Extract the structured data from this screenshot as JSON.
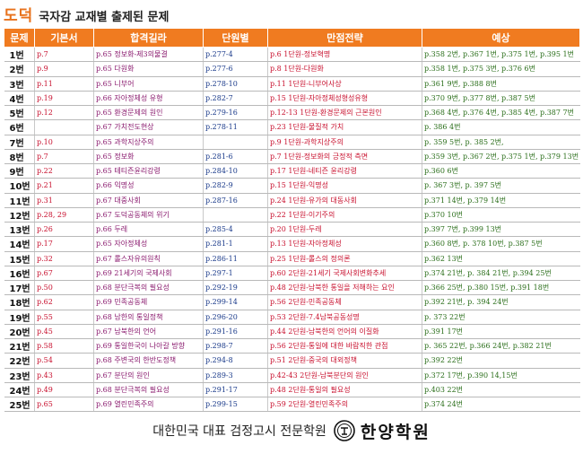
{
  "header": {
    "brand": "도덕",
    "subtitle": "국자감 교재별 출제된 문제"
  },
  "table": {
    "columns": [
      "문제",
      "기본서",
      "합격길라",
      "단원별",
      "만점전략",
      "예상"
    ],
    "rows": [
      {
        "num": "1번",
        "c1": "p.7",
        "c2": "p.65 정보화-제3의물결",
        "c3": "p.277-4",
        "c4": "p.6 1단원-정보혁명",
        "c5": "p.358 2번, p.367 1번, p.375 1번, p.395 1번"
      },
      {
        "num": "2번",
        "c1": "p.9",
        "c2": "p.65 다원화",
        "c3": "p.277-6",
        "c4": "p.8 1단원-다원화",
        "c5": "p.358 1번, p.375 3번, p.376 6번"
      },
      {
        "num": "3번",
        "c1": "p.11",
        "c2": "p.65 니부어",
        "c3": "p.278-10",
        "c4": "p.11 1단원-니부어사상",
        "c5": "p.361 9번, p.388 8번"
      },
      {
        "num": "4번",
        "c1": "p.19",
        "c2": "p.66 자아정체성 유형",
        "c3": "p.282-7",
        "c4": "p.15 1단원-자아정체성형성유형",
        "c5": "p.370 9번, p.377 8번, p.387 5번"
      },
      {
        "num": "5번",
        "c1": "p.12",
        "c2": "p.65 환경문제의 원인",
        "c3": "p.279-16",
        "c4": "p.12-13 1단원-환경문제의 근본원인",
        "c5": "p.368 4번, p.376 4번, p.385 4번, p.387 7번"
      },
      {
        "num": "6번",
        "c1": "",
        "c2": "p.67 가치전도현상",
        "c3": "p.278-11",
        "c4": "p.23 1단원-물질적 가치",
        "c5": "p. 386 4번"
      },
      {
        "num": "7번",
        "c1": "p.10",
        "c2": "p.65 과학지상주의",
        "c3": "",
        "c4": "p.9 1단원-과학지상주의",
        "c5": "p. 359 5번, p. 385 2번,"
      },
      {
        "num": "8번",
        "c1": "p.7",
        "c2": "p.65 정보화",
        "c3": "p.281-6",
        "c4": "p.7 1단원-정보화의 긍정적 측면",
        "c5": "p.359 3번, p.367 2번, p.375 1번, p.379 13번"
      },
      {
        "num": "9번",
        "c1": "p.22",
        "c2": "p.65 테티즌윤리강령",
        "c3": "p.284-10",
        "c4": "p.17 1단원-네티즌 윤리강령",
        "c5": "p.360 6번"
      },
      {
        "num": "10번",
        "c1": "p.21",
        "c2": "p.66 익명성",
        "c3": "p.282-9",
        "c4": "p.15 1단원-익명성",
        "c5": "p. 367 3번, p. 397 5번"
      },
      {
        "num": "11번",
        "c1": "p.31",
        "c2": "p.67 대중사회",
        "c3": "p.287-16",
        "c4": "p.24 1단원-유가의 대동사회",
        "c5": "p.371 14번, p.379 14번"
      },
      {
        "num": "12번",
        "c1": "p.28, 29",
        "c2": "p.67 도덕공동체의 위기",
        "c3": "",
        "c4": "p.22 1단원-이기주의",
        "c5": "p.370 10번"
      },
      {
        "num": "13번",
        "c1": "p.26",
        "c2": "p.66 두레",
        "c3": "p.285-4",
        "c4": "p.20 1단원-두레",
        "c5": "p.397 7번, p.399 13번"
      },
      {
        "num": "14번",
        "c1": "p.17",
        "c2": "p.65 자아정체성",
        "c3": "p.281-1",
        "c4": "p.13 1단원-자아정체성",
        "c5": "p.360 8번, p. 378 10번, p.387 5번"
      },
      {
        "num": "15번",
        "c1": "p.32",
        "c2": "p.67 롤스자유의원칙",
        "c3": "p.286-11",
        "c4": "p.25 1단원-롤스의 정의론",
        "c5": "p.362 13번"
      },
      {
        "num": "16번",
        "c1": "p.67",
        "c2": "p.69 21세기의 국제사회",
        "c3": "p.297-1",
        "c4": "p.60 2단원-21세기 국제사회변화추세",
        "c5": "p.374 21번, p. 384 21번, p.394 25번"
      },
      {
        "num": "17번",
        "c1": "p.50",
        "c2": "p.68 분단극복의 필요성",
        "c3": "p.292-19",
        "c4": "p.48 2단원-남북한 통일을 저해하는 요인",
        "c5": "p.366 25번, p.380 15번, p.391 18번"
      },
      {
        "num": "18번",
        "c1": "p.62",
        "c2": "p.69 민족공동체",
        "c3": "p.299-14",
        "c4": "p.56 2단원-민족공동체",
        "c5": "p.392 21번, p. 394 24번"
      },
      {
        "num": "19번",
        "c1": "p.55",
        "c2": "p.68 남한의 통일정책",
        "c3": "p.296-20",
        "c4": "p.53 2단원-7.4남북공동성명",
        "c5": "p. 373 22번"
      },
      {
        "num": "20번",
        "c1": "p.45",
        "c2": "p.67 남북한의 언어",
        "c3": "p.291-16",
        "c4": "p.44 2단원-남북한의 언어의 이질화",
        "c5": "p.391 17번"
      },
      {
        "num": "21번",
        "c1": "p.58",
        "c2": "p.69 통일한국이 나아갈 방향",
        "c3": "p.298-7",
        "c4": "p.56 2단원-통일에 대한 바람직한 관점",
        "c5": "p. 365 22번, p.366 24번, p.382 21번"
      },
      {
        "num": "22번",
        "c1": "p.54",
        "c2": "p.68 주변국의 한반도정책",
        "c3": "p.294-8",
        "c4": "p.51 2단원-중국의 대외정책",
        "c5": "p.392 22번"
      },
      {
        "num": "23번",
        "c1": "p.43",
        "c2": "p.67 분단의 원인",
        "c3": "p.289-3",
        "c4": "p.42-43 2단원-남북분단의 원인",
        "c5": "p.372 17번, p.390 14,15번"
      },
      {
        "num": "24번",
        "c1": "p.49",
        "c2": "p.68 분단극복의 필요성",
        "c3": "p.291-17",
        "c4": "p.48 2단원-통일의 필요성",
        "c5": "p.403 22번"
      },
      {
        "num": "25번",
        "c1": "p.65",
        "c2": "p.69 열린민족주의",
        "c3": "p.299-15",
        "c4": "p.59 2단원-열린민족주의",
        "c5": "p.374 24번"
      }
    ]
  },
  "footer": {
    "tagline": "대한민국 대표 검정고시 전문학원",
    "school": "한양학원",
    "logo_icon": "hanyang-seal-icon"
  },
  "colors": {
    "header_bg": "#f07b20",
    "brand": "#e8721c",
    "col_textbook": "#c8102e",
    "col_guide": "#8a1a6e",
    "col_unit": "#1a3a8a",
    "col_strategy": "#c8102e",
    "col_forecast": "#2a6e1a"
  }
}
